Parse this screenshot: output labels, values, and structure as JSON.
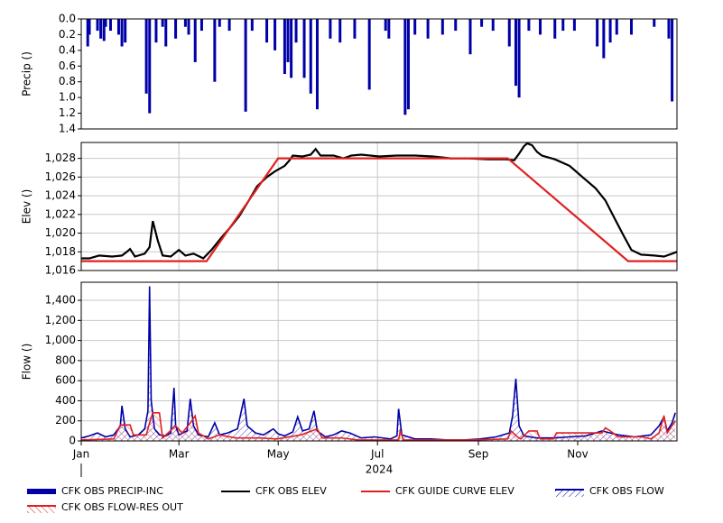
{
  "chart_data": [
    {
      "type": "bar",
      "ylabel": "Precip ()",
      "ylim": [
        0,
        1.4
      ],
      "reverse_y": true,
      "grid": false,
      "xlim": [
        0,
        366
      ],
      "yticks": [
        {
          "value": 0,
          "label": "0.0"
        },
        0.2,
        0.4,
        0.6,
        0.8,
        {
          "value": 1,
          "label": "1.0"
        },
        1.2,
        1.4
      ],
      "series": [
        {
          "name": "CFK OBS PRECIP-INC",
          "color": "#0000a8",
          "x": [
            4,
            5,
            10,
            12,
            14,
            15,
            18,
            23,
            25,
            27,
            40,
            42,
            46,
            50,
            52,
            58,
            64,
            66,
            70,
            74,
            82,
            85,
            91,
            101,
            105,
            114,
            119,
            125,
            127,
            129,
            132,
            137,
            141,
            145,
            153,
            159,
            168,
            177,
            187,
            189,
            199,
            201,
            205,
            213,
            222,
            230,
            239,
            246,
            253,
            263,
            267,
            269,
            275,
            282,
            291,
            296,
            303,
            317,
            321,
            325,
            329,
            338,
            352,
            361,
            363
          ],
          "values": [
            0.35,
            0.2,
            0.15,
            0.25,
            0.28,
            0.1,
            0.15,
            0.2,
            0.35,
            0.3,
            0.95,
            1.2,
            0.3,
            0.1,
            0.35,
            0.25,
            0.1,
            0.2,
            0.55,
            0.15,
            0.8,
            0.1,
            0.15,
            1.18,
            0.15,
            0.3,
            0.4,
            0.7,
            0.55,
            0.75,
            0.3,
            0.75,
            0.95,
            1.15,
            0.25,
            0.3,
            0.25,
            0.9,
            0.15,
            0.25,
            1.22,
            1.15,
            0.2,
            0.25,
            0.2,
            0.15,
            0.45,
            0.1,
            0.15,
            0.35,
            0.85,
            1.0,
            0.15,
            0.2,
            0.25,
            0.15,
            0.15,
            0.35,
            0.5,
            0.3,
            0.2,
            0.2,
            0.1,
            0.25,
            1.05
          ]
        }
      ]
    },
    {
      "type": "line",
      "ylabel": "Elev ()",
      "ylim": [
        1016,
        1029.7
      ],
      "grid": true,
      "xlim": [
        0,
        366
      ],
      "yticks": [
        {
          "value": 1016,
          "label": "1,016"
        },
        {
          "value": 1018,
          "label": "1,018"
        },
        {
          "value": 1020,
          "label": "1,020"
        },
        {
          "value": 1022,
          "label": "1,022"
        },
        {
          "value": 1024,
          "label": "1,024"
        },
        {
          "value": 1026,
          "label": "1,026"
        },
        {
          "value": 1028,
          "label": "1,028"
        }
      ],
      "series": [
        {
          "name": "CFK OBS ELEV",
          "color": "#000000",
          "x": [
            0,
            5,
            11,
            19,
            25,
            28,
            30,
            33,
            39,
            42,
            44,
            47,
            50,
            55,
            60,
            64,
            69,
            75,
            80,
            86,
            91,
            97,
            103,
            108,
            114,
            119,
            125,
            128,
            130,
            136,
            141,
            144,
            147,
            155,
            161,
            166,
            172,
            183,
            194,
            205,
            216,
            227,
            238,
            250,
            261,
            266,
            269,
            272,
            274,
            277,
            280,
            283,
            291,
            300,
            308,
            316,
            322,
            327,
            333,
            338,
            344,
            352,
            358,
            363,
            366
          ],
          "values": [
            1017.3,
            1017.3,
            1017.6,
            1017.5,
            1017.6,
            1018.0,
            1018.3,
            1017.5,
            1017.8,
            1018.5,
            1021.3,
            1019.2,
            1017.6,
            1017.5,
            1018.2,
            1017.6,
            1017.8,
            1017.3,
            1018.2,
            1019.5,
            1020.5,
            1021.8,
            1023.5,
            1025.0,
            1026.0,
            1026.6,
            1027.2,
            1027.8,
            1028.3,
            1028.2,
            1028.4,
            1029.0,
            1028.3,
            1028.3,
            1028.0,
            1028.3,
            1028.4,
            1028.2,
            1028.3,
            1028.3,
            1028.2,
            1028.0,
            1028.0,
            1027.9,
            1027.9,
            1027.8,
            1028.5,
            1029.3,
            1029.6,
            1029.4,
            1028.7,
            1028.3,
            1027.9,
            1027.2,
            1026.0,
            1024.8,
            1023.5,
            1021.8,
            1019.8,
            1018.2,
            1017.7,
            1017.6,
            1017.5,
            1017.8,
            1018.0
          ]
        },
        {
          "name": "CFK GUIDE CURVE ELEV",
          "color": "#e02020",
          "x": [
            0,
            77,
            121,
            262,
            336,
            366
          ],
          "values": [
            1017,
            1017,
            1028,
            1028,
            1017,
            1017
          ]
        }
      ]
    },
    {
      "type": "line",
      "ylabel": "Flow ()",
      "ylim": [
        0,
        1580
      ],
      "grid": true,
      "xlim": [
        0,
        366
      ],
      "year_label": "2024",
      "xticks": [
        {
          "value": 0,
          "label": "Jan"
        },
        {
          "value": 60,
          "label": "Mar"
        },
        {
          "value": 121,
          "label": "May"
        },
        {
          "value": 182,
          "label": "Jul"
        },
        {
          "value": 244,
          "label": "Sep"
        },
        {
          "value": 305,
          "label": "Nov"
        }
      ],
      "yticks": [
        0,
        200,
        400,
        600,
        800,
        {
          "value": 1000,
          "label": "1,000"
        },
        {
          "value": 1200,
          "label": "1,200"
        },
        {
          "value": 1400,
          "label": "1,400"
        }
      ],
      "series": [
        {
          "name": "CFK OBS FLOW",
          "color": "#0000a8",
          "x": [
            0,
            5,
            10,
            15,
            20,
            24,
            25,
            27,
            30,
            35,
            39,
            41,
            42,
            43,
            45,
            48,
            52,
            55,
            57,
            58,
            60,
            65,
            67,
            69,
            72,
            78,
            82,
            85,
            90,
            96,
            100,
            102,
            107,
            112,
            118,
            121,
            125,
            130,
            133,
            136,
            140,
            143,
            145,
            150,
            155,
            160,
            165,
            172,
            180,
            190,
            194,
            195,
            197,
            205,
            215,
            225,
            235,
            245,
            255,
            263,
            265,
            267,
            269,
            272,
            280,
            290,
            300,
            310,
            320,
            325,
            330,
            340,
            350,
            355,
            358,
            360,
            363,
            365
          ],
          "values": [
            30,
            50,
            80,
            40,
            60,
            150,
            350,
            120,
            40,
            60,
            120,
            300,
            1540,
            400,
            120,
            60,
            50,
            80,
            530,
            150,
            60,
            100,
            420,
            150,
            60,
            40,
            180,
            60,
            80,
            120,
            420,
            150,
            80,
            60,
            120,
            70,
            50,
            90,
            240,
            100,
            120,
            300,
            100,
            40,
            60,
            100,
            80,
            30,
            40,
            20,
            50,
            320,
            60,
            20,
            20,
            10,
            10,
            20,
            40,
            80,
            250,
            620,
            150,
            50,
            30,
            30,
            40,
            50,
            100,
            80,
            60,
            40,
            60,
            150,
            240,
            100,
            180,
            280
          ]
        },
        {
          "name": "CFK OBS FLOW-RES OUT",
          "color": "#e02020",
          "x": [
            0,
            20,
            24,
            30,
            32,
            40,
            42,
            44,
            48,
            50,
            58,
            62,
            68,
            70,
            72,
            78,
            85,
            95,
            110,
            120,
            135,
            145,
            148,
            160,
            170,
            195,
            196,
            198,
            240,
            262,
            264,
            268,
            270,
            275,
            280,
            282,
            290,
            292,
            320,
            322,
            325,
            330,
            345,
            350,
            355,
            358,
            360,
            365
          ],
          "values": [
            10,
            20,
            160,
            160,
            60,
            60,
            180,
            280,
            280,
            30,
            150,
            80,
            200,
            250,
            80,
            20,
            60,
            30,
            30,
            20,
            60,
            120,
            30,
            30,
            10,
            10,
            100,
            10,
            10,
            20,
            100,
            40,
            20,
            100,
            100,
            20,
            20,
            80,
            80,
            130,
            100,
            40,
            40,
            20,
            80,
            250,
            80,
            200
          ]
        }
      ]
    }
  ]
}
